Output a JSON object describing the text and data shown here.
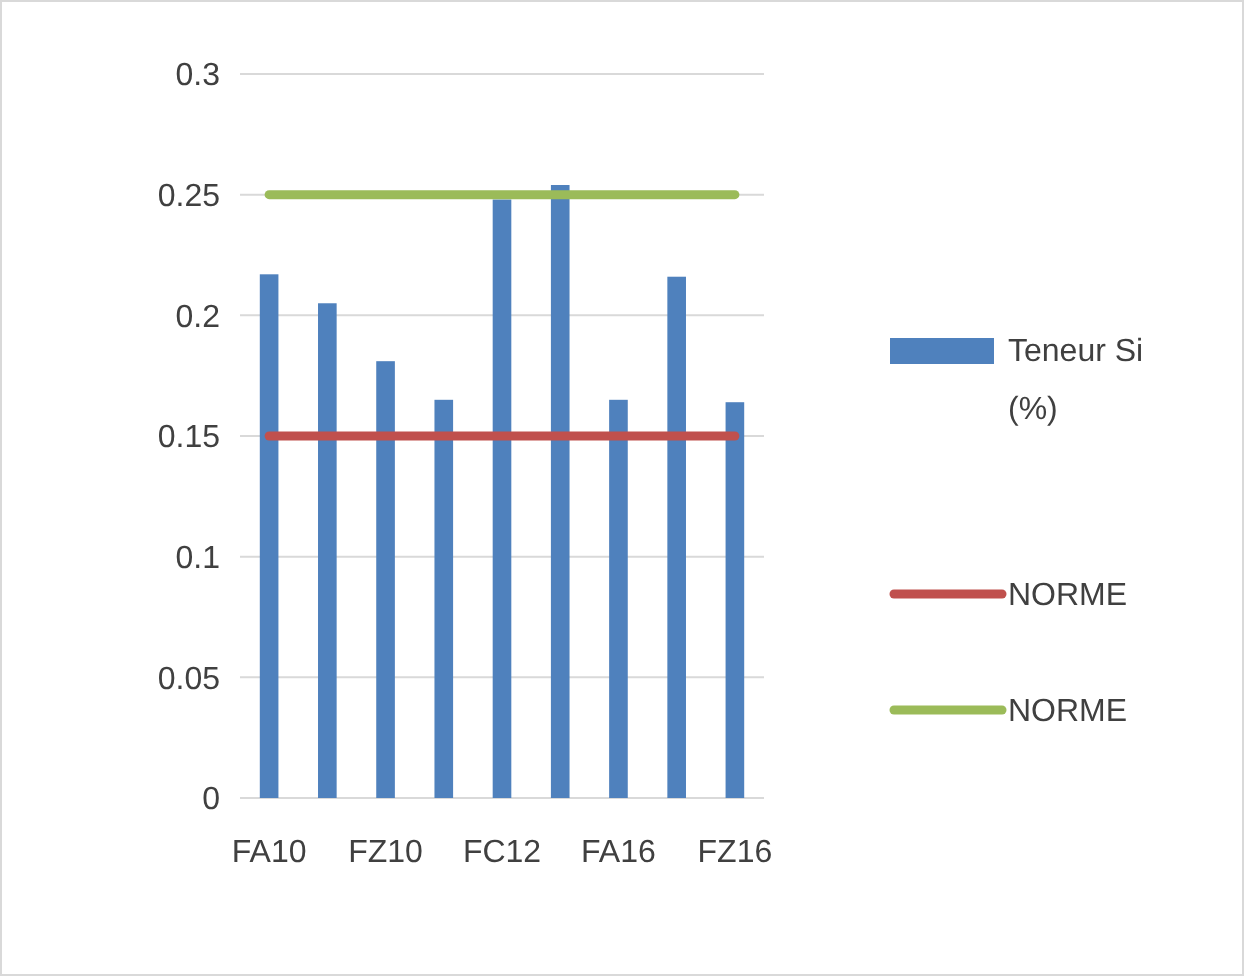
{
  "chart_data": {
    "type": "bar",
    "categories": [
      "FA10",
      null,
      "FZ10",
      null,
      "FC12",
      null,
      "FA16",
      null,
      "FZ16"
    ],
    "series": [
      {
        "name": "Teneur Si (%)",
        "color": "#4f81bd",
        "values": [
          0.217,
          0.205,
          0.181,
          0.165,
          0.248,
          0.254,
          0.165,
          0.216,
          0.164
        ]
      },
      {
        "name": "NORME",
        "type": "line",
        "color": "#c0504d",
        "values": [
          0.15,
          0.15,
          0.15,
          0.15,
          0.15,
          0.15,
          0.15,
          0.15,
          0.15
        ]
      },
      {
        "name": "NORME",
        "type": "line",
        "color": "#9bbb59",
        "values": [
          0.25,
          0.25,
          0.25,
          0.25,
          0.25,
          0.25,
          0.25,
          0.25,
          0.25
        ]
      }
    ],
    "ylim": [
      0,
      0.3
    ],
    "yticks": [
      0,
      0.05,
      0.1,
      0.15,
      0.2,
      0.25,
      0.3
    ],
    "grid": "y",
    "legend": "right",
    "marker": "none"
  }
}
